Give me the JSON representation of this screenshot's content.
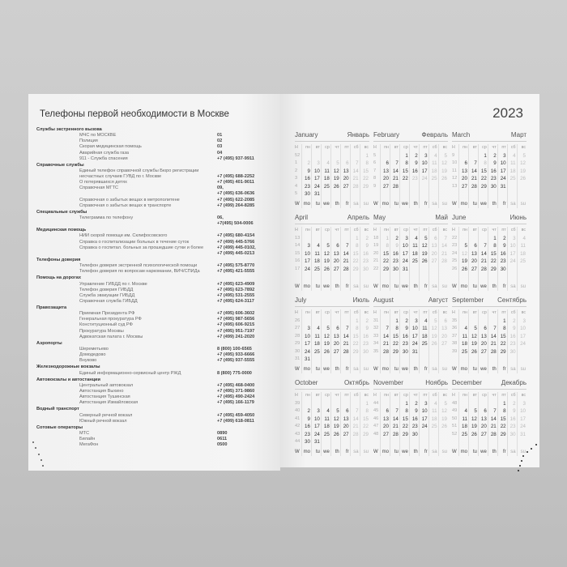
{
  "left_page": {
    "title": "Телефоны первой необходимости в Москве",
    "sections": [
      {
        "heading": "Службы экстренного вызова",
        "items": [
          {
            "label": "МЧС по МОСКВЕ",
            "phone": [
              "01"
            ]
          },
          {
            "label": "Полиция",
            "phone": [
              "02"
            ]
          },
          {
            "label": "Скорая медицинская помощь",
            "phone": [
              "03"
            ]
          },
          {
            "label": "Аварийная служба газа",
            "phone": [
              "04"
            ]
          },
          {
            "label": "911 - Служба спасения",
            "phone": [
              "+7 (495) 937-9911"
            ]
          }
        ]
      },
      {
        "heading": "Справочные службы",
        "items": [
          {
            "label": "Единый телефон справочной службы Бюро регистрации",
            "phone": [
              ""
            ]
          },
          {
            "label": "несчастных случаев ГУВД по г. Москве",
            "phone": [
              "+7 (495) 688-2252"
            ]
          },
          {
            "label": "О потерявшихся детях",
            "phone": [
              "+7 (495) 401-9011"
            ]
          },
          {
            "label": "Справочная МГТС",
            "phone": [
              "09,",
              "+7 (495) 636-0636"
            ]
          },
          {
            "label": "Справочная о забытых вещах в метрополитене",
            "phone": [
              "+7 (495) 622-2085"
            ]
          },
          {
            "label": "Справочная о забытых вещах в транспорте",
            "phone": [
              "+7 (499) 264-8285"
            ]
          }
        ]
      },
      {
        "heading": "Специальные службы",
        "items": [
          {
            "label": "Телеграмма по телефону",
            "phone": [
              "06,",
              "+7(495) 504-0006"
            ]
          }
        ]
      },
      {
        "heading": "Медицинская помощь",
        "items": [
          {
            "label": "НИИ скорой помощи им. Склифосовского",
            "phone": [
              "+7 (495) 680-4154"
            ]
          },
          {
            "label": "Справка о госпитализации больных в течение суток",
            "phone": [
              "+7 (499) 445-5766"
            ]
          },
          {
            "label": "Справка о госпитал. больных за прошедшие сутки и более",
            "phone": [
              "+7 (499) 445-0102,",
              "+7 (499) 445-0213"
            ]
          }
        ]
      },
      {
        "heading": "Телефоны доверия",
        "items": [
          {
            "label": "Телефон доверия экстренной психологической помощи",
            "phone": [
              "+7 (495) 575-8770"
            ]
          },
          {
            "label": "Телефон доверия по вопросам наркомании, ВИЧ/СПИДа",
            "phone": [
              "+7 (495) 421-5555"
            ]
          }
        ]
      },
      {
        "heading": "Помощь на дорогах",
        "items": [
          {
            "label": "Управление ГИБДД по г. Москве",
            "phone": [
              "+7 (495) 623-4909"
            ]
          },
          {
            "label": "Телефон доверия ГИБДД",
            "phone": [
              "+7 (495) 623-7892"
            ]
          },
          {
            "label": "Служба эвакуации ГИБДД",
            "phone": [
              "+7 (495) 531-2555"
            ]
          },
          {
            "label": "Справочная служба ГИБДД",
            "phone": [
              "+7 (495) 624-3117"
            ]
          }
        ]
      },
      {
        "heading": "Правозащита",
        "items": [
          {
            "label": "Приемная Президента РФ",
            "phone": [
              "+7 (495) 606-3602"
            ]
          },
          {
            "label": "Генеральная прокуратура РФ",
            "phone": [
              "+7 (495) 987-5656"
            ]
          },
          {
            "label": "Конституционный суд РФ",
            "phone": [
              "+7 (495) 606-9215"
            ]
          },
          {
            "label": "Прокуратура Москвы",
            "phone": [
              "+7 (495) 951-7197"
            ]
          },
          {
            "label": "Адвокатская палата г. Москвы",
            "phone": [
              "+7 (499) 241-2020"
            ]
          }
        ]
      },
      {
        "heading": "Аэропорты",
        "items": [
          {
            "label": "Шереметьево",
            "phone": [
              "8 (800) 100-6565"
            ]
          },
          {
            "label": "Домодедово",
            "phone": [
              "+7 (495) 933-6666"
            ]
          },
          {
            "label": "Внуково",
            "phone": [
              "+7 (495) 937-5555"
            ]
          }
        ]
      },
      {
        "heading": "Железнодорожные вокзалы",
        "items": [
          {
            "label": "Единый информационно-сервисный центр РЖД",
            "phone": [
              "8 (800) 775-0000"
            ]
          }
        ]
      },
      {
        "heading": "Автовокзалы и автостанции",
        "items": [
          {
            "label": "Центральный автовокзал",
            "phone": [
              "+7 (495) 468-0400"
            ]
          },
          {
            "label": "Автостанция Выхино",
            "phone": [
              "+7 (495) 371-9860"
            ]
          },
          {
            "label": "Автостанция Тушинская",
            "phone": [
              "+7 (495) 490-2424"
            ]
          },
          {
            "label": "Автостанция Измайловская",
            "phone": [
              "+7 (495) 166-1179"
            ]
          }
        ]
      },
      {
        "heading": "Водный транспорт",
        "items": [
          {
            "label": "Северный речной вокзал",
            "phone": [
              "+7 (495) 459-4050"
            ]
          },
          {
            "label": "Южный речной вокзал",
            "phone": [
              "+7 (499) 618-0811"
            ]
          }
        ]
      },
      {
        "heading": "Сотовые операторы",
        "items": [
          {
            "label": "МТС",
            "phone": [
              "0890"
            ]
          },
          {
            "label": "Билайн",
            "phone": [
              "0611"
            ]
          },
          {
            "label": "МегаФон",
            "phone": [
              "0500"
            ]
          }
        ]
      }
    ]
  },
  "calendar": {
    "year": "2023",
    "week_label": "Н",
    "week_label_bottom": "W",
    "day_names_ru": [
      "пн",
      "вт",
      "ср",
      "чт",
      "пт",
      "сб",
      "вс"
    ],
    "day_names_en": [
      "mo",
      "tu",
      "we",
      "th",
      "fr",
      "sa",
      "su"
    ],
    "months": [
      {
        "en": "January",
        "ru": "Январь",
        "holidays": [
          1,
          2,
          3,
          4,
          5,
          6,
          7,
          8
        ],
        "weeks": [
          [
            52,
            null,
            null,
            null,
            null,
            null,
            null,
            1
          ],
          [
            1,
            2,
            3,
            4,
            5,
            6,
            7,
            8
          ],
          [
            2,
            9,
            10,
            11,
            12,
            13,
            14,
            15
          ],
          [
            3,
            16,
            17,
            18,
            19,
            20,
            21,
            22
          ],
          [
            4,
            23,
            24,
            25,
            26,
            27,
            28,
            29
          ],
          [
            5,
            30,
            31,
            null,
            null,
            null,
            null,
            null
          ]
        ]
      },
      {
        "en": "February",
        "ru": "Февраль",
        "holidays": [
          23,
          24
        ],
        "weeks": [
          [
            5,
            null,
            null,
            1,
            2,
            3,
            4,
            5
          ],
          [
            6,
            6,
            7,
            8,
            9,
            10,
            11,
            12
          ],
          [
            7,
            13,
            14,
            15,
            16,
            17,
            18,
            19
          ],
          [
            8,
            20,
            21,
            22,
            23,
            24,
            25,
            26
          ],
          [
            9,
            27,
            28,
            null,
            null,
            null,
            null,
            null
          ]
        ]
      },
      {
        "en": "March",
        "ru": "Март",
        "holidays": [
          8
        ],
        "weeks": [
          [
            9,
            null,
            null,
            1,
            2,
            3,
            4,
            5
          ],
          [
            10,
            6,
            7,
            8,
            9,
            10,
            11,
            12
          ],
          [
            11,
            13,
            14,
            15,
            16,
            17,
            18,
            19
          ],
          [
            12,
            20,
            21,
            22,
            23,
            24,
            25,
            26
          ],
          [
            13,
            27,
            28,
            29,
            30,
            31,
            null,
            null
          ]
        ]
      },
      {
        "en": "April",
        "ru": "Апрель",
        "holidays": [],
        "weeks": [
          [
            13,
            null,
            null,
            null,
            null,
            null,
            1,
            2
          ],
          [
            14,
            3,
            4,
            5,
            6,
            7,
            8,
            9
          ],
          [
            15,
            10,
            11,
            12,
            13,
            14,
            15,
            16
          ],
          [
            16,
            17,
            18,
            19,
            20,
            21,
            22,
            23
          ],
          [
            17,
            24,
            25,
            26,
            27,
            28,
            29,
            30
          ]
        ]
      },
      {
        "en": "May",
        "ru": "Май",
        "holidays": [
          1,
          8,
          9
        ],
        "weeks": [
          [
            18,
            1,
            2,
            3,
            4,
            5,
            6,
            7
          ],
          [
            19,
            8,
            9,
            10,
            11,
            12,
            13,
            14
          ],
          [
            20,
            15,
            16,
            17,
            18,
            19,
            20,
            21
          ],
          [
            21,
            22,
            23,
            24,
            25,
            26,
            27,
            28
          ],
          [
            22,
            29,
            30,
            31,
            null,
            null,
            null,
            null
          ]
        ]
      },
      {
        "en": "June",
        "ru": "Июнь",
        "holidays": [
          12
        ],
        "weeks": [
          [
            22,
            null,
            null,
            null,
            1,
            2,
            3,
            4
          ],
          [
            23,
            5,
            6,
            7,
            8,
            9,
            10,
            11
          ],
          [
            24,
            12,
            13,
            14,
            15,
            16,
            17,
            18
          ],
          [
            25,
            19,
            20,
            21,
            22,
            23,
            24,
            25
          ],
          [
            26,
            26,
            27,
            28,
            29,
            30,
            null,
            null
          ]
        ]
      },
      {
        "en": "July",
        "ru": "Июль",
        "holidays": [],
        "weeks": [
          [
            26,
            null,
            null,
            null,
            null,
            null,
            1,
            2
          ],
          [
            27,
            3,
            4,
            5,
            6,
            7,
            8,
            9
          ],
          [
            28,
            10,
            11,
            12,
            13,
            14,
            15,
            16
          ],
          [
            29,
            17,
            18,
            19,
            20,
            21,
            22,
            23
          ],
          [
            30,
            24,
            25,
            26,
            27,
            28,
            29,
            30
          ],
          [
            31,
            31,
            null,
            null,
            null,
            null,
            null,
            null
          ]
        ]
      },
      {
        "en": "August",
        "ru": "Август",
        "holidays": [],
        "weeks": [
          [
            31,
            null,
            1,
            2,
            3,
            4,
            5,
            6
          ],
          [
            32,
            7,
            8,
            9,
            10,
            11,
            12,
            13
          ],
          [
            33,
            14,
            15,
            16,
            17,
            18,
            19,
            20
          ],
          [
            34,
            21,
            22,
            23,
            24,
            25,
            26,
            27
          ],
          [
            35,
            28,
            29,
            30,
            31,
            null,
            null,
            null
          ]
        ]
      },
      {
        "en": "September",
        "ru": "Сентябрь",
        "holidays": [],
        "weeks": [
          [
            35,
            null,
            null,
            null,
            null,
            1,
            2,
            3
          ],
          [
            36,
            4,
            5,
            6,
            7,
            8,
            9,
            10
          ],
          [
            37,
            11,
            12,
            13,
            14,
            15,
            16,
            17
          ],
          [
            38,
            18,
            19,
            20,
            21,
            22,
            23,
            24
          ],
          [
            39,
            25,
            26,
            27,
            28,
            29,
            30,
            null
          ]
        ]
      },
      {
        "en": "October",
        "ru": "Октябрь",
        "holidays": [],
        "weeks": [
          [
            39,
            null,
            null,
            null,
            null,
            null,
            null,
            1
          ],
          [
            40,
            2,
            3,
            4,
            5,
            6,
            7,
            8
          ],
          [
            41,
            9,
            10,
            11,
            12,
            13,
            14,
            15
          ],
          [
            42,
            16,
            17,
            18,
            19,
            20,
            21,
            22
          ],
          [
            43,
            23,
            24,
            25,
            26,
            27,
            28,
            29
          ],
          [
            44,
            30,
            31,
            null,
            null,
            null,
            null,
            null
          ]
        ]
      },
      {
        "en": "November",
        "ru": "Ноябрь",
        "holidays": [],
        "weeks": [
          [
            44,
            null,
            null,
            1,
            2,
            3,
            4,
            5
          ],
          [
            45,
            6,
            7,
            8,
            9,
            10,
            11,
            12
          ],
          [
            46,
            13,
            14,
            15,
            16,
            17,
            18,
            19
          ],
          [
            47,
            20,
            21,
            22,
            23,
            24,
            25,
            26
          ],
          [
            48,
            27,
            28,
            29,
            30,
            null,
            null,
            null
          ]
        ]
      },
      {
        "en": "December",
        "ru": "Декабрь",
        "holidays": [],
        "weeks": [
          [
            48,
            null,
            null,
            null,
            null,
            1,
            2,
            3
          ],
          [
            49,
            4,
            5,
            6,
            7,
            8,
            9,
            10
          ],
          [
            50,
            11,
            12,
            13,
            14,
            15,
            16,
            17
          ],
          [
            51,
            18,
            19,
            20,
            21,
            22,
            23,
            24
          ],
          [
            52,
            25,
            26,
            27,
            28,
            29,
            30,
            31
          ]
        ]
      }
    ]
  }
}
